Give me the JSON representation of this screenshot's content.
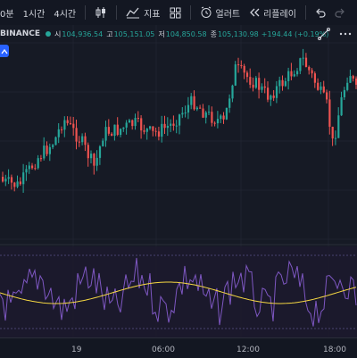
{
  "toolbar": {
    "timeframes": [
      "0분",
      "1시간",
      "4시간"
    ],
    "indicators_label": "지표",
    "alert_label": "얼러트",
    "replay_label": "리플레이"
  },
  "legend": {
    "symbol": "BINANCE",
    "open_label": "시",
    "open": "104,936.54",
    "high_label": "고",
    "high": "105,151.05",
    "low_label": "저",
    "low": "104,850.58",
    "close_label": "종",
    "close": "105,130.98",
    "change": "+194.44 (+0.19%)"
  },
  "colors": {
    "up": "#26a69a",
    "down": "#ef5350",
    "bg": "#161a25",
    "osc": "#7e57c2",
    "signal": "#f5d742"
  },
  "x_axis": {
    "labels": [
      "19",
      "06:00",
      "12:00",
      "18:00"
    ]
  },
  "chart_data": {
    "type": "candlestick",
    "x_ticks": [
      "19",
      "06:00",
      "12:00",
      "18:00"
    ]
  }
}
